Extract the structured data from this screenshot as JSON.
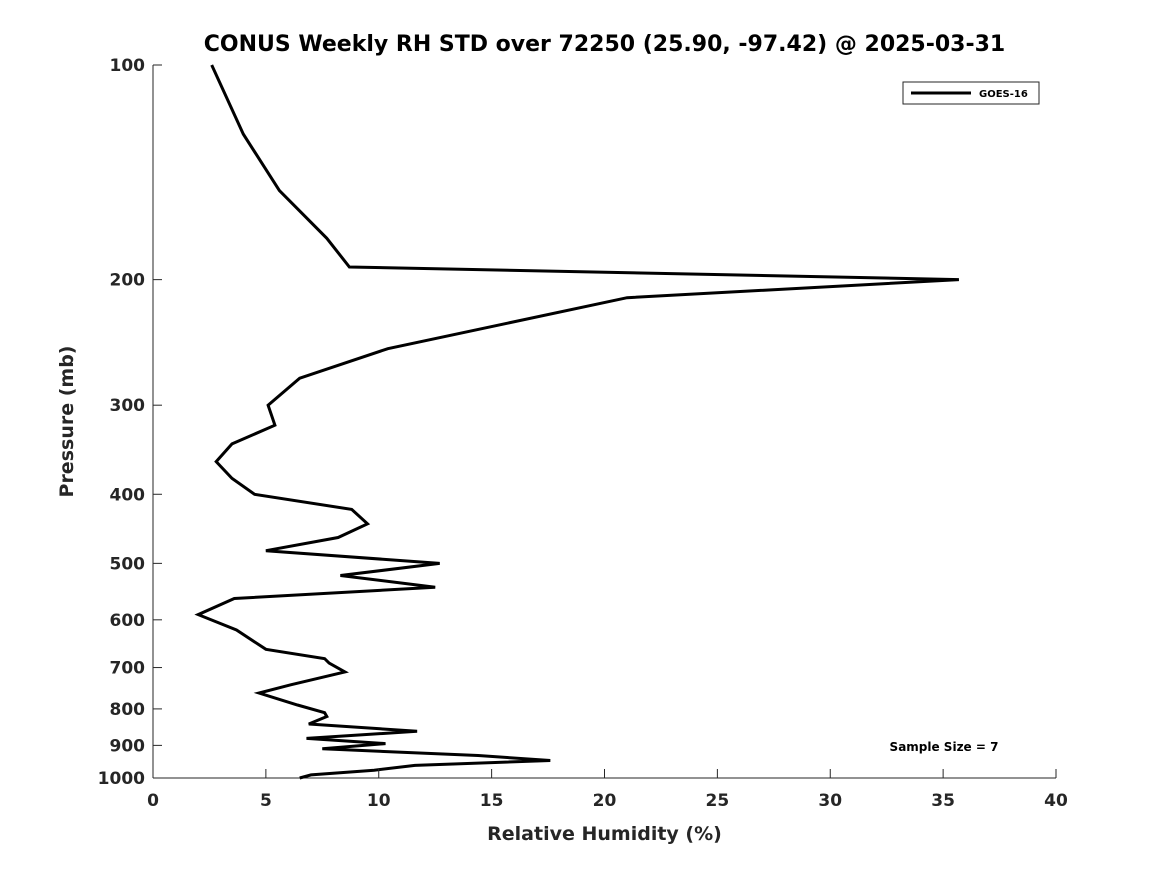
{
  "chart_data": {
    "type": "line",
    "title": "CONUS Weekly RH STD over 72250 (25.90, -97.42) @ 2025-03-31",
    "xlabel": "Relative Humidity (%)",
    "ylabel": "Pressure (mb)",
    "xlim": [
      0,
      40
    ],
    "ylim": [
      100,
      1000
    ],
    "yscale": "log",
    "yreversed": true,
    "grid": false,
    "legend_position": "top-right",
    "xticks": [
      0,
      5,
      10,
      15,
      20,
      25,
      30,
      35,
      40
    ],
    "xtick_labels": [
      "0",
      "5",
      "10",
      "15",
      "20",
      "25",
      "30",
      "35",
      "40"
    ],
    "yticks": [
      100,
      200,
      300,
      400,
      500,
      600,
      700,
      800,
      900,
      1000
    ],
    "ytick_labels": [
      "100",
      "200",
      "300",
      "400",
      "500",
      "600",
      "700",
      "800",
      "900",
      "1000"
    ],
    "series": [
      {
        "name": "GOES-16",
        "color": "#000000",
        "x": [
          2.6,
          4.0,
          5.6,
          7.7,
          8.7,
          35.7,
          21.0,
          10.4,
          6.5,
          5.1,
          5.4,
          3.5,
          2.8,
          3.5,
          4.5,
          8.8,
          9.5,
          8.2,
          5.0,
          12.7,
          8.3,
          12.5,
          3.6,
          2.0,
          3.7,
          5.0,
          7.6,
          7.8,
          8.5,
          6.1,
          4.7,
          6.4,
          7.6,
          7.7,
          6.9,
          11.7,
          6.8,
          10.3,
          7.5,
          14.4,
          17.6,
          11.6,
          9.8,
          7.0,
          6.5
        ],
        "y": [
          100,
          125,
          150,
          175,
          192,
          200,
          212,
          250,
          275,
          300,
          320,
          340,
          360,
          380,
          400,
          420,
          440,
          460,
          480,
          500,
          520,
          540,
          560,
          590,
          620,
          660,
          680,
          690,
          710,
          740,
          760,
          790,
          810,
          820,
          840,
          860,
          880,
          895,
          910,
          930,
          945,
          960,
          975,
          990,
          1000
        ]
      }
    ],
    "annotations": [
      {
        "text": "Sample Size = 7",
        "position": "bottom-right"
      }
    ]
  }
}
